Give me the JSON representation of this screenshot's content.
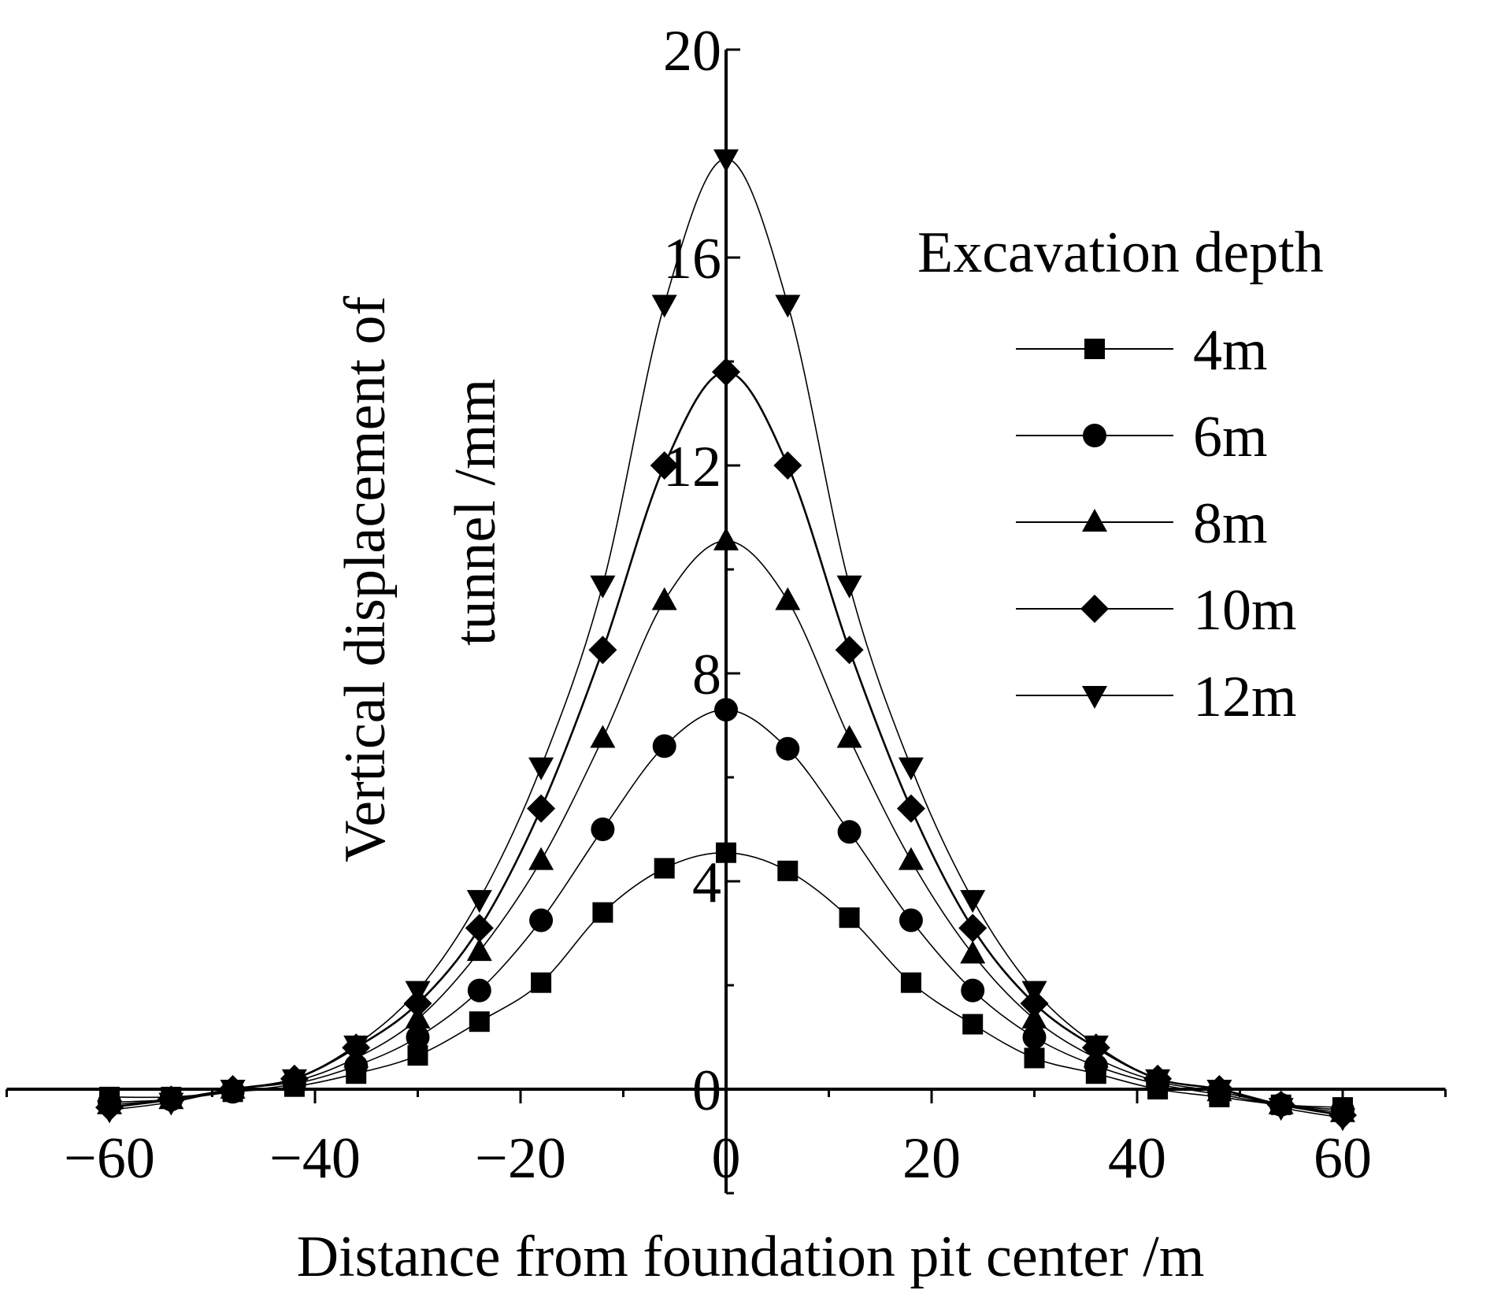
{
  "chart_data": {
    "type": "line",
    "title": "",
    "xlabel": "Distance from foundation pit center /m",
    "ylabel_line1": "Vertical displacement of",
    "ylabel_line2": "tunnel /mm",
    "xlim": [
      -70,
      70
    ],
    "ylim": [
      -2,
      20
    ],
    "x_ticks": [
      -60,
      -40,
      -20,
      0,
      20,
      40,
      60
    ],
    "x_tick_labels": [
      "−60",
      "−40",
      "−20",
      "0",
      "20",
      "40",
      "60"
    ],
    "y_ticks": [
      0,
      4,
      8,
      12,
      16,
      20
    ],
    "y_tick_labels": [
      "0",
      "4",
      "8",
      "12",
      "16",
      "20"
    ],
    "grid": false,
    "legend": {
      "title": "Excavation depth",
      "position": "top-right"
    },
    "x": [
      -60,
      -54,
      -48,
      -42,
      -36,
      -30,
      -24,
      -18,
      -12,
      -6,
      0,
      6,
      12,
      18,
      24,
      30,
      36,
      42,
      48,
      54,
      60
    ],
    "series": [
      {
        "name": "4m",
        "marker": "square",
        "values": [
          -0.15,
          -0.15,
          -0.05,
          0.05,
          0.3,
          0.65,
          1.3,
          2.05,
          3.4,
          4.25,
          4.55,
          4.2,
          3.3,
          2.05,
          1.25,
          0.6,
          0.3,
          0.0,
          -0.15,
          -0.3,
          -0.35
        ]
      },
      {
        "name": "6m",
        "marker": "circle",
        "values": [
          -0.25,
          -0.2,
          -0.05,
          0.1,
          0.45,
          1.0,
          1.9,
          3.25,
          5.0,
          6.6,
          7.3,
          6.55,
          4.95,
          3.25,
          1.9,
          1.0,
          0.45,
          0.1,
          -0.1,
          -0.3,
          -0.4
        ]
      },
      {
        "name": "8m",
        "marker": "triangle-up",
        "values": [
          -0.3,
          -0.2,
          0.0,
          0.15,
          0.6,
          1.35,
          2.65,
          4.4,
          6.75,
          9.4,
          10.55,
          9.4,
          6.75,
          4.4,
          2.6,
          1.35,
          0.6,
          0.15,
          -0.05,
          -0.3,
          -0.45
        ]
      },
      {
        "name": "10m",
        "marker": "diamond",
        "values": [
          -0.35,
          -0.2,
          0.0,
          0.2,
          0.8,
          1.65,
          3.1,
          5.4,
          8.45,
          12.0,
          13.8,
          12.0,
          8.45,
          5.4,
          3.1,
          1.65,
          0.8,
          0.2,
          0.0,
          -0.3,
          -0.5
        ]
      },
      {
        "name": "12m",
        "marker": "triangle-down",
        "values": [
          -0.4,
          -0.25,
          0.0,
          0.2,
          0.85,
          1.9,
          3.65,
          6.2,
          9.7,
          15.1,
          17.9,
          15.1,
          9.7,
          6.2,
          3.65,
          1.9,
          0.85,
          0.2,
          0.0,
          -0.35,
          -0.55
        ]
      }
    ]
  }
}
